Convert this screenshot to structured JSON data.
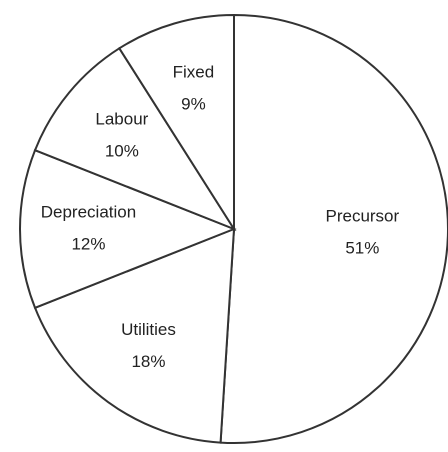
{
  "chart_data": {
    "type": "pie",
    "categories": [
      "Precursor",
      "Utilities",
      "Depreciation",
      "Labour",
      "Fixed"
    ],
    "values": [
      51,
      18,
      12,
      10,
      9
    ],
    "value_labels": [
      "51%",
      "18%",
      "12%",
      "10%",
      "9%"
    ],
    "color": "#ffffff"
  }
}
